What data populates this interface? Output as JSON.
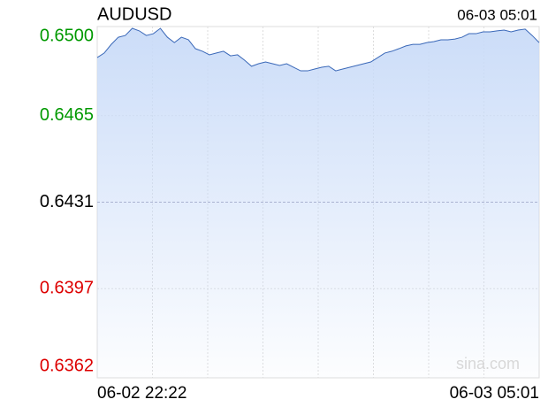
{
  "chart_data": {
    "type": "line",
    "title": "AUDUSD",
    "last_time": "06-03 05:01",
    "watermark": "sina.com",
    "categories": [
      "06-02 22:22",
      null,
      null,
      null,
      null,
      null,
      null,
      null,
      null,
      null,
      null,
      null,
      null,
      null,
      null,
      null,
      null,
      null,
      null,
      null,
      null,
      null,
      null,
      null,
      null,
      null,
      null,
      null,
      null,
      null,
      null,
      null,
      null,
      null,
      null,
      null,
      null,
      null,
      null,
      null,
      null,
      null,
      null,
      null,
      null,
      null,
      null,
      null,
      null,
      null,
      null,
      null,
      null,
      null,
      null,
      null,
      null,
      null,
      null,
      null,
      null,
      null,
      null,
      "06-03 05:01"
    ],
    "values": [
      0.64878,
      0.64896,
      0.6493,
      0.64958,
      0.64965,
      0.64993,
      0.64983,
      0.64965,
      0.64972,
      0.64993,
      0.64958,
      0.64937,
      0.64958,
      0.64948,
      0.64913,
      0.64903,
      0.64889,
      0.64896,
      0.64903,
      0.64885,
      0.64889,
      0.64868,
      0.64844,
      0.64854,
      0.64861,
      0.64854,
      0.64847,
      0.64854,
      0.6484,
      0.64826,
      0.64826,
      0.64833,
      0.6484,
      0.64844,
      0.64826,
      0.64833,
      0.6484,
      0.64847,
      0.64854,
      0.64861,
      0.64878,
      0.64896,
      0.64903,
      0.64913,
      0.64924,
      0.6493,
      0.6493,
      0.64937,
      0.64941,
      0.64948,
      0.64948,
      0.64951,
      0.64958,
      0.64972,
      0.64972,
      0.64979,
      0.64979,
      0.64983,
      0.64986,
      0.64979,
      0.64986,
      0.6499,
      0.64965,
      0.64937
    ],
    "color": "#3a68b8",
    "area_color": "#c9dbf8",
    "ylim": [
      0.6362,
      0.65
    ],
    "yticks": [
      0.6362,
      0.6397,
      0.6431,
      0.6465,
      {
        "value": 0.65,
        "label": "0.6500"
      }
    ],
    "reference": 0.6431,
    "up_color": "#009900",
    "down_color": "#dd0000",
    "grid": true
  }
}
